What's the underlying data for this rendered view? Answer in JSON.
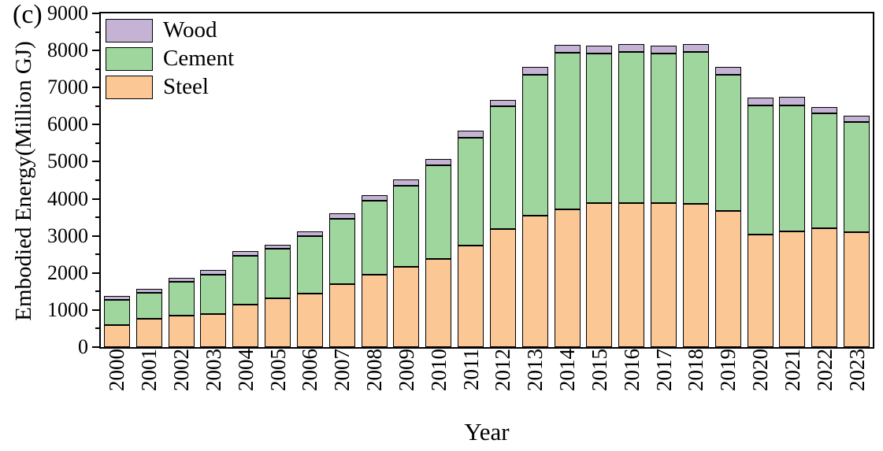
{
  "panel_label": "(c)",
  "chart_data": {
    "type": "bar",
    "stacked": true,
    "title": "",
    "xlabel": "Year",
    "ylabel": "Embodied Energy(Million GJ)",
    "ylim": [
      0,
      9000
    ],
    "y_major_step": 1000,
    "y_minor_step": 500,
    "grid": false,
    "legend_position": "top-left-inside",
    "legend_order": [
      "Wood",
      "Cement",
      "Steel"
    ],
    "categories": [
      "2000",
      "2001",
      "2002",
      "2003",
      "2004",
      "2005",
      "2006",
      "2007",
      "2008",
      "2009",
      "2010",
      "2011",
      "2012",
      "2013",
      "2014",
      "2015",
      "2016",
      "2017",
      "2018",
      "2019",
      "2020",
      "2021",
      "2022",
      "2023"
    ],
    "series": [
      {
        "name": "Steel",
        "color": "#FAC795",
        "values": [
          600,
          755,
          840,
          895,
          1155,
          1310,
          1450,
          1700,
          1945,
          2155,
          2380,
          2745,
          3185,
          3550,
          3710,
          3885,
          3885,
          3885,
          3865,
          3675,
          3045,
          3115,
          3205,
          3095
        ]
      },
      {
        "name": "Cement",
        "color": "#9FD69D",
        "values": [
          680,
          715,
          925,
          1065,
          1310,
          1340,
          1540,
          1765,
          1995,
          2200,
          2520,
          2910,
          3315,
          3805,
          4225,
          4030,
          4065,
          4030,
          4100,
          3660,
          3470,
          3410,
          3105,
          2985
        ]
      },
      {
        "name": "Wood",
        "color": "#C5B3D6",
        "values": [
          110,
          105,
          110,
          120,
          125,
          115,
          125,
          140,
          150,
          160,
          175,
          190,
          170,
          195,
          210,
          210,
          220,
          225,
          210,
          230,
          210,
          230,
          170,
          170
        ]
      }
    ],
    "totals": [
      1390,
      1575,
      1875,
      2080,
      2590,
      2765,
      3115,
      3605,
      4090,
      4515,
      5075,
      5845,
      6670,
      7550,
      8145,
      8125,
      8170,
      8140,
      8175,
      7565,
      6725,
      6755,
      6480,
      6250
    ],
    "axis_color": "#000000"
  }
}
